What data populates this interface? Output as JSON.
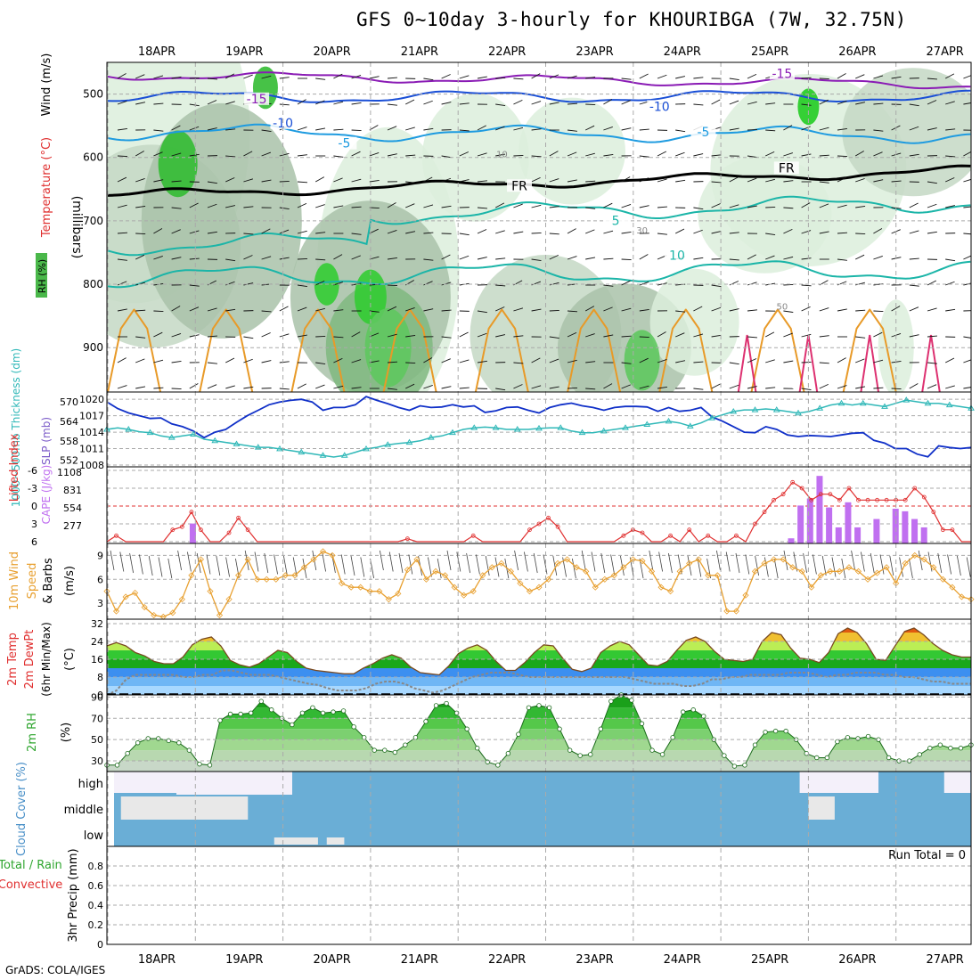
{
  "title": "GFS 0~10day 3-hourly for KHOURIBGA (7W, 32.75N)",
  "footer": "GrADS: COLA/IGES",
  "colors": {
    "rh_green": "#2ec82e",
    "temp_purple": "#8a1bb5",
    "temp_blue": "#1a4fd6",
    "temp_cyan": "#1e9be0",
    "temp_teal": "#1bb5a8",
    "temp_orange": "#e89a28",
    "slp_blue": "#1030c8",
    "thickness_teal": "#30b8b8",
    "lifted_red": "#e03030",
    "cape_violet": "#c070f0",
    "wind_orange": "#e8a030",
    "cloud_blue": "#6aaed6",
    "gridline": "#aaaaaa"
  },
  "chart_data": [
    {
      "type": "contour",
      "panel": "upper-air",
      "ylabel_parts": [
        "RH (%)",
        "Temperature (°C)",
        "Wind (m/s)"
      ],
      "yaxis_label": "(millibars)",
      "yticks": [
        "500",
        "600",
        "700",
        "800",
        "900"
      ],
      "ylim": [
        450,
        970
      ],
      "x_categories": [
        "18APR",
        "19APR",
        "20APR",
        "21APR",
        "22APR",
        "23APR",
        "24APR",
        "25APR",
        "26APR",
        "27APR"
      ],
      "contour_labels": [
        {
          "text": "-15",
          "day": 1.7,
          "level": 513
        },
        {
          "text": "-15",
          "day": 7.7,
          "level": 473
        },
        {
          "text": "-10",
          "day": 2.0,
          "level": 551
        },
        {
          "text": "-10",
          "day": 6.3,
          "level": 525
        },
        {
          "text": "-5",
          "day": 2.7,
          "level": 583
        },
        {
          "text": "-5",
          "day": 6.8,
          "level": 565
        },
        {
          "text": "FR",
          "day": 4.7,
          "level": 650
        },
        {
          "text": "FR",
          "day": 7.75,
          "level": 622
        },
        {
          "text": "5",
          "day": 5.8,
          "level": 705
        },
        {
          "text": "10",
          "day": 6.5,
          "level": 760
        }
      ],
      "rh_labels": [
        "10",
        "30",
        "50"
      ]
    },
    {
      "type": "line",
      "panel": "slp-thickness",
      "ylabel_left": "1000~500mb Thickness (dm)",
      "ylabel_right": "SLP (mb)",
      "yticks_left": [
        "570",
        "564",
        "558",
        "552"
      ],
      "yticks_right": [
        "1020",
        "1017",
        "1014",
        "1011",
        "1008"
      ],
      "series": [
        {
          "name": "SLP (mb)",
          "values": [
            1019.5,
            1018.3,
            1017.5,
            1017.0,
            1016.5,
            1016.6,
            1015.5,
            1015.0,
            1014.2,
            1013.0,
            1014.0,
            1014.5,
            1015.8,
            1017.0,
            1018.0,
            1019.0,
            1019.5,
            1019.8,
            1020.0,
            1019.5,
            1018.0,
            1018.5,
            1018.5,
            1019.0,
            1020.5,
            1019.8,
            1019.2,
            1018.5,
            1018.0,
            1018.8,
            1018.5,
            1018.6,
            1019.0,
            1018.6,
            1018.8,
            1017.6,
            1017.9,
            1018.5,
            1018.6,
            1018.0,
            1017.5,
            1018.5,
            1019.0,
            1019.3,
            1018.8,
            1018.5,
            1018.0,
            1018.5,
            1018.7,
            1018.7,
            1018.6,
            1017.8,
            1018.5,
            1017.8,
            1018.0,
            1018.5,
            1016.8,
            1016.0,
            1015.0,
            1014.0,
            1013.9,
            1015.0,
            1014.5,
            1013.5,
            1013.2,
            1013.4,
            1013.3,
            1013.2,
            1013.5,
            1013.8,
            1013.9,
            1012.5,
            1012.0,
            1011.0,
            1011.0,
            1010.0,
            1009.5,
            1011.5,
            1011.2,
            1011.0,
            1011.2
          ]
        },
        {
          "name": "Thickness (dm)",
          "values": [
            561.5,
            562.0,
            561.5,
            560.8,
            560.5,
            559.5,
            559.0,
            559.5,
            560.0,
            558.5,
            558.0,
            557.5,
            557.0,
            556.5,
            556.0,
            556.0,
            555.5,
            555.0,
            554.5,
            554.0,
            553.5,
            553.0,
            553.5,
            554.5,
            555.5,
            556.0,
            556.8,
            557.2,
            557.5,
            558.0,
            559.0,
            559.5,
            560.5,
            561.5,
            562.0,
            562.2,
            562.0,
            561.5,
            561.5,
            561.5,
            561.8,
            562.0,
            562.0,
            561.0,
            560.5,
            560.5,
            561.0,
            561.5,
            562.0,
            562.5,
            563.0,
            563.5,
            564.0,
            563.5,
            562.5,
            563.5,
            565.0,
            566.0,
            567.0,
            567.5,
            567.5,
            567.8,
            567.5,
            567.0,
            566.5,
            567.0,
            568.0,
            569.0,
            569.5,
            569.0,
            569.5,
            569.0,
            568.5,
            569.5,
            570.5,
            570.0,
            569.5,
            569.5,
            569.0,
            568.5,
            568.0
          ]
        }
      ]
    },
    {
      "type": "bar-line",
      "panel": "lifted-cape",
      "ylabel_left": "Lifted Index",
      "ylabel_right": "CAPE (J/kg)",
      "yticks_left": [
        "-6",
        "-3",
        "0",
        "3",
        "6"
      ],
      "yticks_right": [
        "1108",
        "831",
        "554",
        "277"
      ],
      "series": [
        {
          "name": "Lifted Index",
          "values": [
            6,
            5,
            6,
            6,
            6,
            6,
            6,
            4,
            3.5,
            1,
            4,
            6,
            6,
            4.5,
            2,
            4,
            6,
            6,
            6,
            6,
            6,
            6,
            6,
            6,
            6,
            6,
            6,
            6,
            6,
            6,
            6,
            6,
            5.5,
            6,
            6,
            6,
            6,
            6,
            6,
            5,
            6,
            6,
            6,
            6,
            6,
            4,
            3,
            2,
            3.5,
            6,
            6,
            6,
            6,
            6,
            6,
            5,
            4,
            4.5,
            6,
            6,
            5,
            6,
            4,
            6,
            5,
            6,
            6,
            5,
            6,
            3,
            1,
            -1,
            -2,
            -4,
            -3,
            -1,
            -2,
            -2,
            -1,
            -3,
            -1,
            -1,
            -1,
            -1,
            -1,
            -1,
            -3,
            -1.5,
            1,
            4,
            4,
            6,
            6
          ]
        },
        {
          "name": "CAPE (J/kg)",
          "values": [
            0,
            0,
            0,
            0,
            0,
            0,
            0,
            0,
            0,
            310,
            0,
            0,
            0,
            0,
            0,
            0,
            0,
            0,
            0,
            0,
            0,
            0,
            0,
            0,
            0,
            0,
            0,
            0,
            0,
            0,
            0,
            0,
            0,
            0,
            0,
            0,
            0,
            0,
            0,
            0,
            0,
            0,
            0,
            0,
            0,
            0,
            0,
            0,
            0,
            0,
            0,
            0,
            0,
            0,
            0,
            0,
            0,
            0,
            0,
            0,
            0,
            0,
            0,
            0,
            0,
            0,
            0,
            0,
            0,
            0,
            0,
            0,
            80,
            590,
            700,
            1050,
            560,
            250,
            640,
            250,
            0,
            380,
            0,
            540,
            500,
            380,
            250,
            0,
            0,
            0,
            0,
            0
          ]
        }
      ]
    },
    {
      "type": "line",
      "panel": "wind-10m",
      "ylabel": "10m Wind Speed & Barbs (m/s)",
      "yticks": [
        "9",
        "6",
        "3"
      ],
      "ylim": [
        1,
        10.5
      ],
      "series": [
        {
          "name": "10m Wind Speed",
          "values": [
            4.5,
            2,
            3.8,
            4.3,
            2.5,
            1.5,
            1.3,
            1.8,
            3.5,
            6.5,
            8.5,
            4.5,
            1.5,
            3.5,
            6.5,
            8.5,
            6,
            6,
            6,
            6.5,
            6.5,
            7.5,
            8.5,
            9.5,
            9,
            5.5,
            5,
            5,
            4.5,
            4.5,
            3.5,
            4.2,
            7.2,
            8.5,
            6,
            7,
            6.5,
            5,
            4,
            4.5,
            6.5,
            7.5,
            8,
            7,
            5.5,
            4.5,
            5,
            6,
            8,
            8.5,
            7.5,
            7,
            5,
            6,
            6.5,
            7.5,
            8.5,
            8.3,
            7,
            5,
            4.5,
            7,
            8,
            8.5,
            6.5,
            6.5,
            2,
            2,
            4,
            7,
            8,
            8.5,
            8.5,
            7.5,
            7,
            5,
            6.5,
            7,
            7,
            7.5,
            7,
            6,
            6.8,
            7.5,
            5.5,
            8,
            9,
            8.5,
            7.5,
            6,
            5,
            3.8,
            3.5
          ]
        }
      ]
    },
    {
      "type": "area-line",
      "panel": "temp-dewpt",
      "ylabel": "2m Temp 2m DewPt (6hr Min/Max) (°C)",
      "yticks": [
        "32",
        "24",
        "16",
        "8",
        "0"
      ],
      "ylim": [
        0,
        34
      ],
      "series": [
        {
          "name": "2m Temp",
          "values": [
            22,
            23.5,
            22,
            19,
            17.5,
            15,
            14,
            14,
            17,
            22.5,
            25,
            26,
            22,
            15.5,
            13.5,
            12.5,
            14,
            17,
            20,
            19,
            15,
            12,
            11,
            10.5,
            10,
            9.5,
            9.5,
            12,
            14,
            16.5,
            18,
            16.5,
            12.5,
            10,
            9.5,
            9,
            13,
            18.5,
            21,
            22.5,
            20,
            15,
            11,
            11,
            14.5,
            19,
            22.5,
            22,
            16.5,
            11.5,
            10.5,
            12,
            19,
            22,
            24,
            22.5,
            18,
            13.5,
            13,
            15,
            20,
            24.5,
            26,
            24,
            19.5,
            16,
            15.5,
            15,
            16,
            24,
            28,
            27,
            21,
            16.5,
            16,
            14.5,
            19,
            27.5,
            30,
            28,
            23,
            16,
            15.5,
            22,
            28.5,
            30,
            27,
            23,
            20,
            18,
            17,
            17
          ]
        },
        {
          "name": "2m DewPt",
          "values": [
            0,
            2,
            7,
            9,
            9,
            9,
            9,
            9,
            8,
            8,
            9,
            9,
            11,
            11,
            10,
            9,
            9,
            9,
            8,
            7,
            6,
            5,
            4.5,
            3,
            2,
            2,
            2,
            3,
            5,
            6,
            6,
            5,
            3,
            2,
            1,
            2,
            4,
            6,
            8,
            9,
            10,
            10,
            10,
            9,
            8,
            8,
            8,
            8,
            8,
            8,
            8,
            8,
            8,
            8,
            8,
            7,
            6,
            5,
            5,
            5,
            4,
            4,
            5,
            7,
            7,
            8,
            8,
            9,
            9,
            9,
            9,
            10,
            10,
            10,
            9,
            8,
            9,
            9,
            10,
            10,
            10,
            9,
            9,
            8,
            8,
            7,
            6,
            6,
            5,
            5,
            5
          ]
        }
      ]
    },
    {
      "type": "area",
      "panel": "rh-2m",
      "ylabel": "2m RH (%)",
      "yticks": [
        "90",
        "70",
        "50",
        "30"
      ],
      "ylim": [
        20,
        92
      ],
      "series": [
        {
          "name": "2m RH",
          "values": [
            26,
            26,
            37,
            47,
            51,
            51,
            49,
            47,
            40,
            27,
            26,
            68,
            74,
            74,
            75,
            86,
            78,
            70,
            64,
            75,
            80,
            75,
            76,
            77,
            62,
            52,
            40,
            40,
            38,
            45,
            52,
            67,
            82,
            84,
            75,
            60,
            42,
            29,
            26,
            37,
            55,
            80,
            82,
            80,
            60,
            40,
            35,
            36,
            60,
            86,
            92,
            87,
            65,
            40,
            36,
            52,
            76,
            78,
            72,
            50,
            35,
            25,
            26,
            45,
            57,
            58,
            58,
            50,
            37,
            33,
            33,
            48,
            52,
            51,
            53,
            50,
            33,
            30,
            30,
            36,
            42,
            45,
            42,
            42,
            45
          ]
        }
      ]
    },
    {
      "type": "heatmap",
      "panel": "cloud-cover",
      "ylabel": "Cloud Cover (%)",
      "rows": [
        "high",
        "middle",
        "low"
      ]
    },
    {
      "type": "bar",
      "panel": "precip-3hr",
      "ylabel_parts": [
        "Total / Rain",
        "Convective",
        "3hr Precip (mm)"
      ],
      "yticks": [
        "0",
        "0.2",
        "0.4",
        "0.6",
        "0.8"
      ],
      "ylim": [
        0,
        1.0
      ],
      "annotation": "Run Total = 0",
      "x_categories": [
        "18APR",
        "19APR",
        "20APR",
        "21APR",
        "22APR",
        "23APR",
        "24APR",
        "25APR",
        "26APR",
        "27APR"
      ],
      "values": []
    }
  ]
}
